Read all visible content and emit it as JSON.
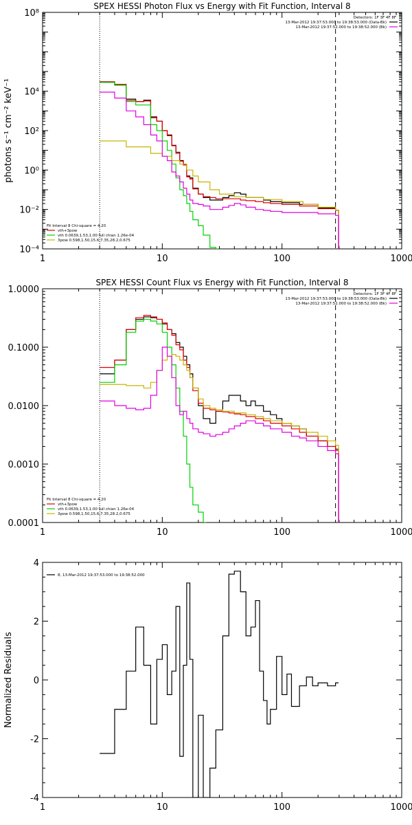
{
  "chart_data": [
    {
      "type": "line",
      "title": "SPEX HESSI Photon Flux vs Energy with Fit Function, Interval 8",
      "xlabel": "",
      "ylabel": "photons s⁻¹ cm⁻² keV⁻¹",
      "xscale": "log",
      "yscale": "log",
      "xlim": [
        1,
        1000
      ],
      "ylim": [
        0.0001,
        100000000
      ],
      "xticks": [
        1,
        10,
        100,
        1000
      ],
      "xtick_labels": [
        "1",
        "10",
        "100",
        "1000"
      ],
      "yticks": [
        0.0001,
        0.01,
        1,
        100,
        10000,
        100000000
      ],
      "ytick_labels": [
        "10⁻⁴",
        "10⁻²",
        "10⁰",
        "10²",
        "10⁴",
        "10⁸"
      ],
      "grid": false,
      "vlines": [
        {
          "x": 3,
          "style": "dotted"
        },
        {
          "x": 280,
          "style": "dashed"
        }
      ],
      "legend_topright": {
        "header": "Detectors: 1F 3F 4F 8F",
        "entries": [
          {
            "label": "13-Mar-2012 19:37:53.000 to 19:38:53.000 (Data-Bk)",
            "color": "#000000"
          },
          {
            "label": "13-Mar-2012 19:37:52.000 to 19:38:52.000 (Bk)",
            "color": "#e000e0"
          }
        ]
      },
      "legend_bottomleft": {
        "header": "Fit Interval 8   Chi-square = 4.20",
        "entries": [
          {
            "label": "vth+3pow",
            "color": "#e00000"
          },
          {
            "label": "vth 0.0639,1.53,1.00  full chian 1.26e-04",
            "color": "#00d000"
          },
          {
            "label": "3pow 0.598,1.50,15.6,7.35,28.2,0.675",
            "color": "#c8b400"
          }
        ]
      },
      "series": [
        {
          "color": "#000000",
          "x": [
            3,
            4,
            5,
            6,
            7,
            8,
            9,
            10,
            11,
            12,
            13,
            14,
            15,
            16,
            17,
            18,
            20,
            22,
            25,
            28,
            32,
            36,
            40,
            45,
            50,
            60,
            70,
            80,
            100,
            140,
            200,
            280
          ],
          "y": [
            30000,
            22000,
            4000,
            3000,
            3500,
            500,
            300,
            100,
            60,
            18,
            8,
            3,
            2,
            0.5,
            0.4,
            0.12,
            0.06,
            0.04,
            0.03,
            0.03,
            0.04,
            0.05,
            0.07,
            0.06,
            0.04,
            0.04,
            0.03,
            0.025,
            0.022,
            0.018,
            0.012,
            0.009
          ]
        },
        {
          "color": "#e00000",
          "x": [
            3,
            4,
            5,
            6,
            7,
            8,
            9,
            10,
            11,
            12,
            13,
            14,
            15,
            16,
            17,
            18,
            20,
            22,
            25,
            28,
            32,
            36,
            40,
            45,
            50,
            60,
            70,
            80,
            100,
            140,
            200,
            280
          ],
          "y": [
            30000,
            22000,
            3500,
            3000,
            3200,
            450,
            300,
            100,
            55,
            17,
            7,
            2.8,
            1.8,
            0.45,
            0.35,
            0.11,
            0.06,
            0.045,
            0.04,
            0.035,
            0.035,
            0.035,
            0.035,
            0.03,
            0.028,
            0.025,
            0.022,
            0.02,
            0.018,
            0.015,
            0.011,
            0.009
          ]
        },
        {
          "color": "#00d000",
          "x": [
            3,
            4,
            5,
            6,
            7,
            8,
            9,
            10,
            11,
            12,
            13,
            14,
            15,
            16,
            17,
            18,
            20,
            22,
            25,
            28
          ],
          "y": [
            28000,
            20000,
            3000,
            2000,
            2000,
            200,
            100,
            30,
            10,
            2,
            0.4,
            0.1,
            0.05,
            0.02,
            0.008,
            0.003,
            0.0015,
            0.0005,
            0.00012,
            0.0001
          ]
        },
        {
          "color": "#c8b400",
          "x": [
            3,
            5,
            8,
            10,
            12,
            14,
            16,
            18,
            20,
            25,
            30,
            40,
            50,
            70,
            100,
            150,
            200,
            280
          ],
          "y": [
            30,
            15,
            7,
            5,
            3,
            2,
            1,
            0.5,
            0.25,
            0.1,
            0.06,
            0.045,
            0.04,
            0.032,
            0.025,
            0.018,
            0.013,
            0.009
          ]
        },
        {
          "color": "#e000e0",
          "x": [
            3,
            4,
            5,
            6,
            7,
            8,
            9,
            10,
            11,
            12,
            13,
            14,
            15,
            16,
            17,
            18,
            20,
            22,
            25,
            28,
            32,
            36,
            40,
            45,
            50,
            60,
            70,
            80,
            100,
            140,
            200,
            280
          ],
          "y": [
            9000,
            4500,
            1000,
            500,
            200,
            60,
            30,
            5,
            3,
            0.8,
            0.5,
            0.25,
            0.12,
            0.06,
            0.03,
            0.02,
            0.018,
            0.015,
            0.01,
            0.01,
            0.013,
            0.016,
            0.02,
            0.017,
            0.013,
            0.01,
            0.009,
            0.008,
            0.007,
            0.007,
            0.006,
            0.005
          ]
        }
      ]
    },
    {
      "type": "line",
      "title": "SPEX HESSI Count Flux vs Energy with Fit Function, Interval 8",
      "xlabel": "",
      "ylabel": "",
      "xscale": "log",
      "yscale": "log",
      "xlim": [
        1,
        1000
      ],
      "ylim": [
        0.0001,
        1
      ],
      "xticks": [
        1,
        10,
        100,
        1000
      ],
      "xtick_labels": [
        "1",
        "10",
        "100",
        "1000"
      ],
      "yticks": [
        0.0001,
        0.001,
        0.01,
        0.1,
        1
      ],
      "ytick_labels": [
        "0.0001",
        "0.0010",
        "0.0100",
        "0.1000",
        "1.0000"
      ],
      "grid": false,
      "vlines": [
        {
          "x": 3,
          "style": "dotted"
        },
        {
          "x": 280,
          "style": "dashed"
        }
      ],
      "legend_topright": {
        "header": "Detectors: 1F 3F 4F 8F",
        "entries": [
          {
            "label": "13-Mar-2012 19:37:53.000 to 19:38:53.000 (Data-Bk)",
            "color": "#000000"
          },
          {
            "label": "13-Mar-2012 19:37:52.000 to 19:38:52.000 (Bk)",
            "color": "#e000e0"
          }
        ]
      },
      "legend_bottomleft": {
        "header": "Fit Interval 8   Chi-square = 4.20",
        "entries": [
          {
            "label": "vth+3pow",
            "color": "#e00000"
          },
          {
            "label": "vth 0.0639,1.53,1.00  full chian 1.26e-04",
            "color": "#00d000"
          },
          {
            "label": "3pow 0.598,1.50,15.6,7.35,28.2,0.675",
            "color": "#c8b400"
          }
        ]
      },
      "series": [
        {
          "color": "#000000",
          "x": [
            3,
            4,
            5,
            6,
            7,
            8,
            9,
            10,
            11,
            12,
            13,
            14,
            15,
            16,
            17,
            18,
            20,
            22,
            25,
            28,
            32,
            36,
            40,
            45,
            50,
            55,
            60,
            70,
            80,
            90,
            100,
            120,
            140,
            160,
            200,
            240,
            280
          ],
          "y": [
            0.035,
            0.06,
            0.2,
            0.3,
            0.33,
            0.32,
            0.3,
            0.25,
            0.2,
            0.17,
            0.12,
            0.1,
            0.07,
            0.05,
            0.035,
            0.02,
            0.01,
            0.006,
            0.005,
            0.008,
            0.012,
            0.015,
            0.015,
            0.012,
            0.01,
            0.012,
            0.01,
            0.008,
            0.007,
            0.006,
            0.005,
            0.0045,
            0.004,
            0.003,
            0.0025,
            0.002,
            0.0018
          ]
        },
        {
          "color": "#e00000",
          "x": [
            3,
            4,
            5,
            6,
            7,
            8,
            9,
            10,
            11,
            12,
            13,
            14,
            15,
            16,
            17,
            18,
            20,
            22,
            25,
            28,
            32,
            36,
            40,
            45,
            50,
            60,
            70,
            80,
            100,
            120,
            140,
            160,
            200,
            240,
            280
          ],
          "y": [
            0.045,
            0.06,
            0.2,
            0.32,
            0.35,
            0.33,
            0.3,
            0.26,
            0.2,
            0.16,
            0.11,
            0.09,
            0.06,
            0.045,
            0.03,
            0.018,
            0.011,
            0.009,
            0.0085,
            0.008,
            0.0078,
            0.0075,
            0.0072,
            0.007,
            0.0065,
            0.006,
            0.0055,
            0.005,
            0.0045,
            0.004,
            0.0035,
            0.003,
            0.0025,
            0.002,
            0.0017
          ]
        },
        {
          "color": "#00d000",
          "x": [
            3,
            4,
            5,
            6,
            7,
            8,
            9,
            10,
            11,
            12,
            13,
            14,
            15,
            16,
            17,
            18,
            20,
            22
          ],
          "y": [
            0.025,
            0.05,
            0.18,
            0.28,
            0.3,
            0.28,
            0.25,
            0.18,
            0.1,
            0.05,
            0.02,
            0.008,
            0.003,
            0.001,
            0.0004,
            0.0002,
            0.00015,
            0.0001
          ]
        },
        {
          "color": "#c8b400",
          "x": [
            3,
            5,
            7,
            8,
            9,
            10,
            11,
            12,
            13,
            14,
            15,
            16,
            17,
            18,
            20,
            22,
            25,
            28,
            32,
            40,
            50,
            60,
            70,
            80,
            100,
            120,
            140,
            160,
            200,
            240,
            280
          ],
          "y": [
            0.023,
            0.022,
            0.02,
            0.025,
            0.04,
            0.06,
            0.07,
            0.075,
            0.07,
            0.06,
            0.05,
            0.04,
            0.03,
            0.02,
            0.013,
            0.01,
            0.009,
            0.0085,
            0.008,
            0.0075,
            0.007,
            0.0065,
            0.006,
            0.0055,
            0.005,
            0.0045,
            0.004,
            0.0035,
            0.003,
            0.0025,
            0.0021
          ]
        },
        {
          "color": "#e000e0",
          "x": [
            3,
            4,
            5,
            6,
            7,
            8,
            9,
            10,
            11,
            12,
            13,
            14,
            15,
            16,
            17,
            18,
            20,
            22,
            25,
            28,
            32,
            36,
            40,
            45,
            50,
            60,
            70,
            80,
            100,
            120,
            140,
            160,
            200,
            240,
            280
          ],
          "y": [
            0.012,
            0.01,
            0.009,
            0.0085,
            0.009,
            0.015,
            0.04,
            0.1,
            0.07,
            0.03,
            0.01,
            0.007,
            0.008,
            0.006,
            0.005,
            0.004,
            0.0035,
            0.0033,
            0.003,
            0.0032,
            0.0035,
            0.004,
            0.0045,
            0.005,
            0.0055,
            0.005,
            0.0045,
            0.004,
            0.0035,
            0.003,
            0.0028,
            0.0025,
            0.002,
            0.0017,
            0.0015
          ]
        }
      ]
    },
    {
      "type": "line",
      "title": "",
      "xlabel": "",
      "ylabel": "Normalized Residuals",
      "xscale": "log",
      "yscale": "linear",
      "xlim": [
        1,
        1000
      ],
      "ylim": [
        -4,
        4
      ],
      "xticks": [
        1,
        10,
        100,
        1000
      ],
      "xtick_labels": [
        "1",
        "10",
        "100",
        "1000"
      ],
      "yticks": [
        -4,
        -2,
        0,
        2,
        4
      ],
      "ytick_labels": [
        "-4",
        "-2",
        "0",
        "2",
        "4"
      ],
      "grid": false,
      "legend_topleft": {
        "entries": [
          {
            "label": "8, 13-Mar-2012 19:37:53.000 to 19:38:52.000",
            "color": "#000000"
          }
        ]
      },
      "series": [
        {
          "color": "#000000",
          "x": [
            3,
            4,
            5,
            6,
            7,
            8,
            9,
            10,
            11,
            12,
            13,
            14,
            15,
            16,
            17,
            18,
            20,
            22,
            25,
            28,
            32,
            36,
            40,
            45,
            50,
            55,
            60,
            65,
            70,
            75,
            80,
            90,
            100,
            110,
            120,
            140,
            160,
            180,
            200,
            240,
            280
          ],
          "y": [
            -2.5,
            -1.0,
            0.3,
            1.8,
            0.5,
            -1.5,
            0.7,
            1.2,
            -0.5,
            0.3,
            2.5,
            -2.6,
            0.5,
            3.3,
            0.7,
            -4.0,
            -1.2,
            -4.0,
            -3.0,
            -1.7,
            1.5,
            3.6,
            3.7,
            3.0,
            1.5,
            1.8,
            2.7,
            0.3,
            -0.7,
            -1.5,
            -1.0,
            0.8,
            -0.5,
            0.2,
            -0.9,
            -0.2,
            0.1,
            -0.2,
            -0.1,
            -0.2,
            -0.1
          ]
        }
      ]
    }
  ]
}
